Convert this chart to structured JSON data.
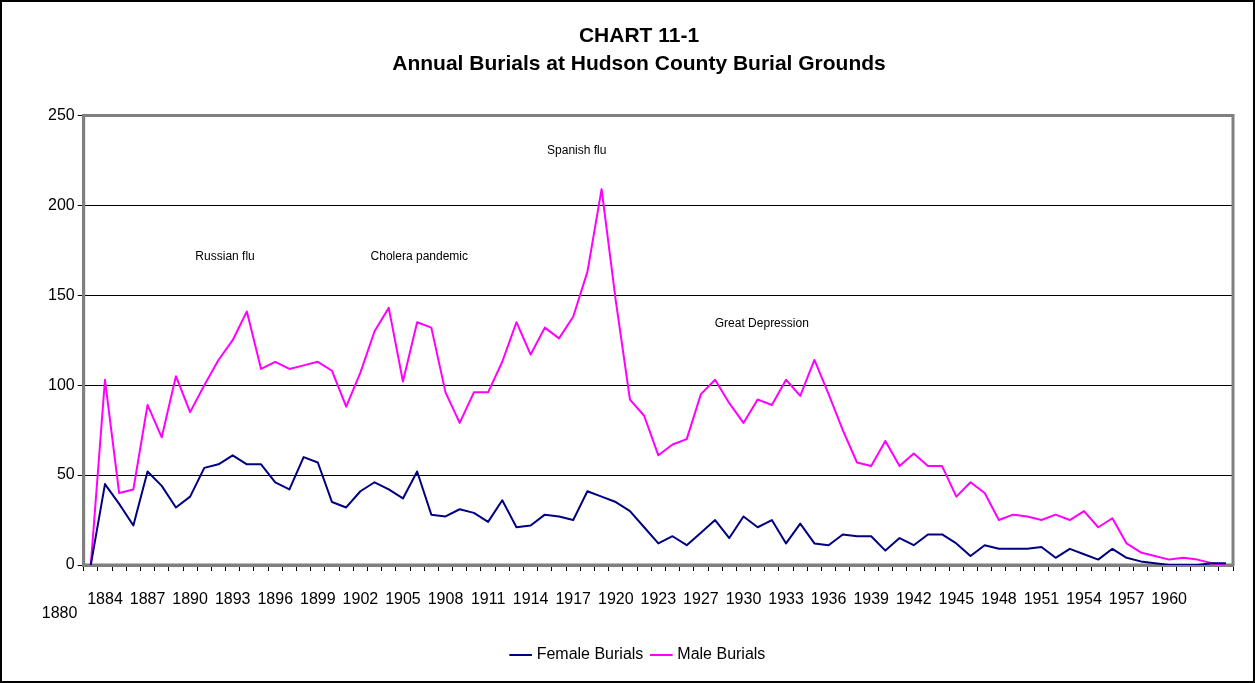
{
  "chart_data": {
    "type": "line",
    "title": "CHART 11-1",
    "subtitle": "Annual Burials at Hudson County Burial Grounds",
    "categories": [
      null,
      "1884",
      null,
      null,
      "1887",
      null,
      null,
      "1890",
      null,
      null,
      "1893",
      null,
      null,
      "1896",
      null,
      null,
      "1899",
      null,
      null,
      "1902",
      null,
      null,
      "1905",
      null,
      null,
      "1908",
      null,
      null,
      "1911",
      null,
      null,
      "1914",
      null,
      null,
      "1917",
      null,
      null,
      "1920",
      null,
      null,
      "1923",
      null,
      null,
      "1927",
      null,
      null,
      "1930",
      null,
      null,
      "1933",
      null,
      null,
      "1936",
      null,
      null,
      "1939",
      null,
      null,
      "1942",
      null,
      null,
      "1945",
      null,
      null,
      "1948",
      null,
      null,
      "1951",
      null,
      null,
      "1954",
      null,
      null,
      "1957",
      null,
      null,
      "1960",
      null,
      null,
      null,
      null
    ],
    "series": [
      {
        "name": "Female Burials",
        "color": "#000080",
        "values": [
          0,
          45,
          34,
          22,
          52,
          44,
          32,
          38,
          54,
          56,
          61,
          56,
          56,
          46,
          42,
          60,
          57,
          35,
          32,
          41,
          46,
          42,
          37,
          52,
          28,
          27,
          31,
          29,
          24,
          36,
          21,
          22,
          28,
          27,
          25,
          41,
          38,
          35,
          30,
          21,
          12,
          16,
          11,
          18,
          25,
          15,
          27,
          21,
          25,
          12,
          23,
          12,
          11,
          17,
          16,
          16,
          8,
          15,
          11,
          17,
          17,
          12,
          5,
          11,
          9,
          9,
          9,
          10,
          4,
          9,
          6,
          3,
          9,
          4,
          2,
          1,
          0,
          0,
          0,
          1,
          1
        ]
      },
      {
        "name": "Male Burials",
        "color": "#ff00ff",
        "values": [
          0,
          103,
          40,
          42,
          89,
          71,
          105,
          85,
          100,
          114,
          125,
          141,
          109,
          113,
          109,
          111,
          113,
          108,
          88,
          107,
          130,
          143,
          102,
          135,
          132,
          96,
          79,
          96,
          96,
          113,
          135,
          117,
          132,
          126,
          138,
          163,
          209,
          147,
          92,
          83,
          61,
          67,
          70,
          95,
          103,
          90,
          79,
          92,
          89,
          103,
          94,
          114,
          95,
          75,
          57,
          55,
          69,
          55,
          62,
          55,
          55,
          38,
          46,
          40,
          25,
          28,
          27,
          25,
          28,
          25,
          30,
          21,
          26,
          12,
          7,
          5,
          3,
          4,
          3,
          1,
          0
        ]
      }
    ],
    "ylim": [
      0,
      250
    ],
    "yticks": [
      0,
      50,
      100,
      150,
      200,
      250
    ],
    "grid": "y",
    "legend": "bottom",
    "marker": "none",
    "line_style": "solid",
    "annotations": [
      "Russian flu",
      "Cholera pandemic",
      "Spanish flu",
      "Great Depression",
      "1880"
    ]
  }
}
